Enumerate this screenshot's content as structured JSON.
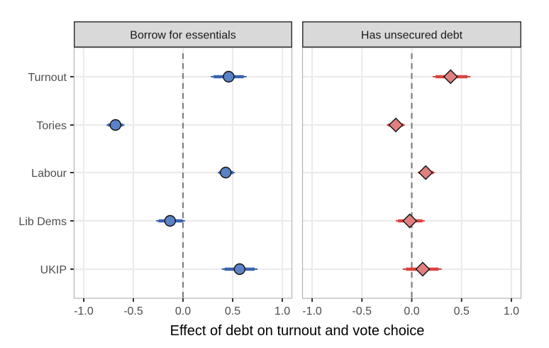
{
  "chart_data": {
    "type": "scatter",
    "subtype": "coefficient-plot-with-error-bars",
    "title": "",
    "xlabel": "Effect of debt on turnout and vote choice",
    "ylabel": "",
    "categories": [
      "Turnout",
      "Tories",
      "Labour",
      "Lib Dems",
      "UKIP"
    ],
    "xlim": [
      -1.1,
      1.1
    ],
    "x_ticks": [
      "-1.0",
      "-0.5",
      "0.0",
      "0.5",
      "1.0"
    ],
    "x_tick_values": [
      -1.0,
      -0.5,
      0.0,
      0.5,
      1.0
    ],
    "grid": true,
    "reference_line": {
      "x": 0.0,
      "style": "dashed",
      "color": "#808080"
    },
    "legend": "none",
    "panels": [
      {
        "name": "Borrow for essentials",
        "marker": "circle",
        "fill_color": "#5b82c4",
        "line_color": "#3a64ad",
        "points": [
          {
            "category": "Turnout",
            "estimate": 0.46,
            "ci_low": 0.28,
            "ci_high": 0.64
          },
          {
            "category": "Tories",
            "estimate": -0.68,
            "ci_low": -0.77,
            "ci_high": -0.59
          },
          {
            "category": "Labour",
            "estimate": 0.43,
            "ci_low": 0.35,
            "ci_high": 0.52
          },
          {
            "category": "Lib Dems",
            "estimate": -0.13,
            "ci_low": -0.27,
            "ci_high": 0.02
          },
          {
            "category": "UKIP",
            "estimate": 0.57,
            "ci_low": 0.39,
            "ci_high": 0.75
          }
        ]
      },
      {
        "name": "Has unsecured debt",
        "marker": "diamond",
        "fill_color": "#e08080",
        "line_color": "#d9443e",
        "points": [
          {
            "category": "Turnout",
            "estimate": 0.39,
            "ci_low": 0.21,
            "ci_high": 0.59
          },
          {
            "category": "Tories",
            "estimate": -0.16,
            "ci_low": -0.25,
            "ci_high": -0.07
          },
          {
            "category": "Labour",
            "estimate": 0.14,
            "ci_low": 0.06,
            "ci_high": 0.23
          },
          {
            "category": "Lib Dems",
            "estimate": -0.02,
            "ci_low": -0.16,
            "ci_high": 0.13
          },
          {
            "category": "UKIP",
            "estimate": 0.11,
            "ci_low": -0.09,
            "ci_high": 0.3
          }
        ]
      }
    ]
  },
  "style": {
    "strip_bg": "#d9d9d9",
    "strip_border": "#333333",
    "panel_border": "#b3b3b3",
    "grid_color": "#ebebeb",
    "tick_color": "#333333"
  }
}
